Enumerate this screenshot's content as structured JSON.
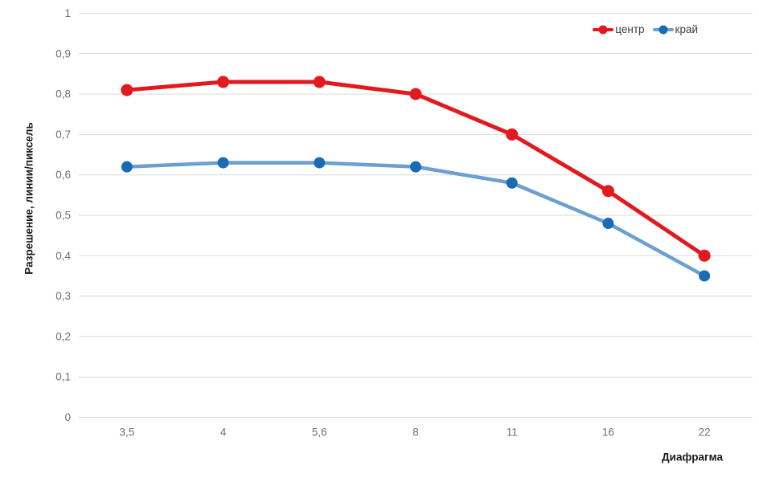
{
  "chart_data": {
    "type": "line",
    "title": "",
    "xlabel": "Диафрагма",
    "ylabel": "Разрешение, линии/пиксель",
    "categories": [
      "3,5",
      "4",
      "5,6",
      "8",
      "11",
      "16",
      "22"
    ],
    "series": [
      {
        "id": "center",
        "name": "центр",
        "values": [
          0.81,
          0.83,
          0.83,
          0.8,
          0.7,
          0.56,
          0.4
        ],
        "line_color": "#e21a1f",
        "marker_color": "#e21a1f",
        "line_width": 5,
        "marker_radius": 7.5
      },
      {
        "id": "edge",
        "name": "край",
        "values": [
          0.62,
          0.63,
          0.63,
          0.62,
          0.58,
          0.48,
          0.35
        ],
        "line_color": "#6a9fd0",
        "marker_color": "#1a6bb5",
        "line_width": 4.5,
        "marker_radius": 7
      }
    ],
    "ylim": [
      0,
      1
    ],
    "yticks": {
      "values": [
        0,
        0.1,
        0.2,
        0.3,
        0.4,
        0.5,
        0.6,
        0.7,
        0.8,
        0.9,
        1
      ],
      "labels": [
        "0",
        "0,1",
        "0,2",
        "0,3",
        "0,4",
        "0,5",
        "0,6",
        "0,7",
        "0,8",
        "0,9",
        "1"
      ]
    },
    "grid": true,
    "grid_color": "#d9d9d9",
    "tick_color": "#6f6f6f",
    "legend_position": "top-right"
  }
}
